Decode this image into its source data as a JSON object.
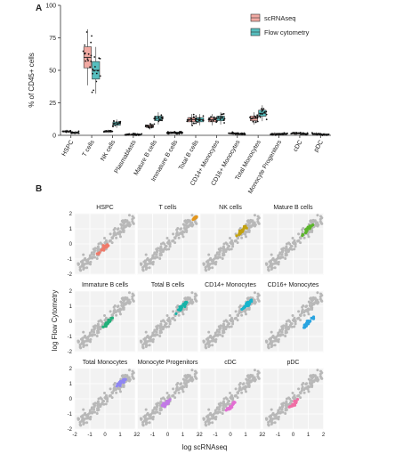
{
  "panel_a": {
    "label": "A",
    "ylabel": "% of CD45+ cells",
    "yticks": [
      "0",
      "25",
      "50",
      "75",
      "100"
    ],
    "legend": [
      {
        "name": "scRNAseq",
        "color": "#e8837a"
      },
      {
        "name": "Flow cytometry",
        "color": "#1aa6a6"
      }
    ]
  },
  "panel_b": {
    "label": "B",
    "xlabel": "log scRNAseq",
    "ylabel": "log Flow Cytometry",
    "yticks": [
      "-2",
      "-1",
      "0",
      "1",
      "2"
    ],
    "xticks": [
      "-2",
      "-1",
      "0",
      "1",
      "2"
    ],
    "background_color": "#b8b8b8",
    "facets": [
      {
        "title": "HSPC",
        "color": "#ef7a6a"
      },
      {
        "title": "T cells",
        "color": "#e3961c"
      },
      {
        "title": "NK cells",
        "color": "#c2a10f"
      },
      {
        "title": "Mature B cells",
        "color": "#5bb52a"
      },
      {
        "title": "Immature B cells",
        "color": "#22b07a"
      },
      {
        "title": "Total B cells",
        "color": "#17b3a8"
      },
      {
        "title": "CD14+ Monocytes",
        "color": "#18b4cc"
      },
      {
        "title": "CD16+ Monocytes",
        "color": "#2aa4e0"
      },
      {
        "title": "Total Monocytes",
        "color": "#8f86f2"
      },
      {
        "title": "Monocyte Progenitors",
        "color": "#c27ae6"
      },
      {
        "title": "cDC",
        "color": "#e26fd2"
      },
      {
        "title": "pDC",
        "color": "#ef6ea4"
      }
    ]
  },
  "chart_data": [
    {
      "type": "box",
      "ylabel": "% of CD45+ cells",
      "ylim": [
        0,
        100
      ],
      "categories": [
        "HSPC",
        "T cells",
        "NK cells",
        "Plasmablasts",
        "Mature B cells",
        "Immature B cells",
        "Total B cells",
        "CD14+ Monocytes",
        "CD16+ Monocytes",
        "Total Monocytes",
        "Monocyte Progenitors",
        "cDC",
        "pDC"
      ],
      "series": [
        {
          "name": "scRNAseq",
          "medians": [
            3,
            60,
            3,
            0.5,
            7,
            2,
            12,
            12,
            1.5,
            13,
            1,
            1.5,
            1
          ]
        },
        {
          "name": "Flow cytometry",
          "medians": [
            2,
            50,
            9,
            0.5,
            13,
            2,
            12,
            13,
            1,
            17,
            1,
            1,
            0.5
          ]
        }
      ],
      "legend_position": "top-right"
    },
    {
      "type": "scatter",
      "xlabel": "log scRNAseq",
      "ylabel": "log Flow Cytometry",
      "xlim": [
        -2,
        2
      ],
      "ylim": [
        -2,
        2
      ],
      "facets": [
        "HSPC",
        "T cells",
        "NK cells",
        "Mature B cells",
        "Immature B cells",
        "Total B cells",
        "CD14+ Monocytes",
        "CD16+ Monocytes",
        "Total Monocytes",
        "Monocyte Progenitors",
        "cDC",
        "pDC"
      ],
      "highlight_centers": [
        [
          -0.1,
          -0.3
        ],
        [
          1.8,
          1.7
        ],
        [
          0.8,
          0.9
        ],
        [
          1.0,
          1.0
        ],
        [
          0.2,
          -0.1
        ],
        [
          1.0,
          1.0
        ],
        [
          1.1,
          1.1
        ],
        [
          1.0,
          -0.1
        ],
        [
          1.1,
          1.1
        ],
        [
          -0.1,
          -0.3
        ],
        [
          0.0,
          -0.5
        ],
        [
          0.0,
          -0.4
        ]
      ],
      "grid": true
    }
  ]
}
